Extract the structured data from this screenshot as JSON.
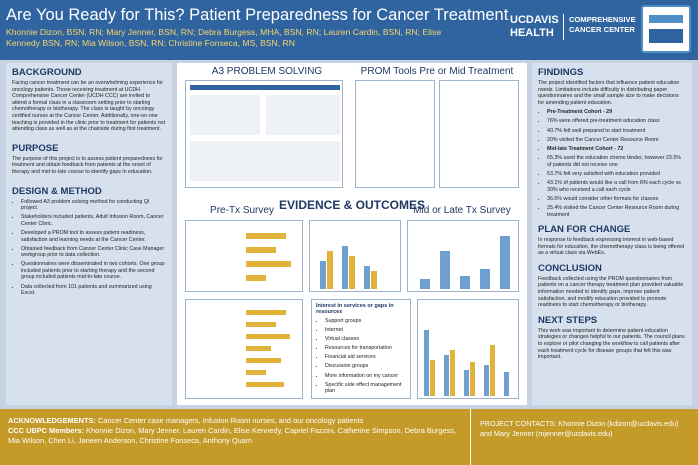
{
  "header": {
    "title": "Are You Ready for This? Patient Preparedness for Cancer Treatment",
    "authors": "Khonnie Dizon, BSN, RN; Mary Jenner, BSN, RN; Debra Burgess, MHA, BSN, RN; Lauren Cardin, BSN, RN; Elise Kennedy BSN, RN; Mia Wilson, BSN, RN; Christine Fonseca, MS, BSN, RN",
    "logo_org": "UCDAVIS",
    "logo_sub": "HEALTH",
    "logo_center": "COMPREHENSIVE CANCER CENTER"
  },
  "background": {
    "heading": "BACKGROUND",
    "text": "Facing cancer treatment can be an overwhelming experience for oncology patients. Those receiving treatment at UCDH Comprehensive Cancer Center (UCDH CCC) are invited to attend a formal class in a classroom setting prior to starting chemotherapy or biotherapy. The class is taught by oncology certified nurses at the Cancer Center. Additionally, one-on-one teaching is provided in the clinic prior to treatment for patients not attending class as well as at the chairside during first treatment."
  },
  "purpose": {
    "heading": "PURPOSE",
    "text": "The purpose of this project is to assess patient preparedness for treatment and obtain feedback from patients at the onset of therapy and mid-to-late course to identify gaps in education."
  },
  "design": {
    "heading": "DESIGN & METHOD",
    "items": [
      "Followed A3 problem solving method for conducting QI project.",
      "Stakeholders included patients, Adult Infusion Room, Cancer Center Clinic.",
      "Developed a PROM tool to assess patient readiness, satisfaction and learning needs at the Cancer Center.",
      "Obtained feedback from Cancer Center Clinic Case Manager workgroup prior to data collection.",
      "Questionnaires were disseminated in two cohorts. One group included patients prior to starting therapy and the second group included patients mid-to-late course.",
      "Data collected from 101 patients and summarized using Excel."
    ]
  },
  "center": {
    "a3": "A3 PROBLEM SOLVING",
    "prom": "PROM Tools Pre or Mid Treatment",
    "evidence": "EVIDENCE & OUTCOMES",
    "pre_tx": "Pre-Tx Survey",
    "mid_tx": "Mid or Late Tx Survey",
    "interest": {
      "heading": "Interest in services or gaps in resources",
      "items": [
        "Support groups",
        "Internet",
        "Virtual classes",
        "Resources for transportation",
        "Financial aid services",
        "Discussion groups",
        "More information on my cancer",
        "Specific side effect management plan"
      ]
    }
  },
  "findings": {
    "heading": "FINDINGS",
    "text": "The project identified factors that influence patient education needs. Limitations include difficulty in distributing paper questionnaires and the small sample size to make decisions for amending patient education.",
    "cohorts": [
      {
        "title": "Pre-Treatment Cohort - 29",
        "items": [
          "76% were offered pre-treatment education class",
          "40.7% felt well prepared to start treatment",
          "20% visited the Cancer Center Resource Room"
        ]
      },
      {
        "title": "Mid-late Treatment Cohort - 72",
        "items": [
          "65.3% used the education chemo binder, however 23.5% of patients did not receive one",
          "53.7% felt very satisfied with education provided",
          "43.1% of patients would like a call from RN each cycle vs 30% who received a call each cycle",
          "36.6% would consider other formats for classes",
          "25.4% visited the Cancer Center Resource Room during treatment"
        ]
      }
    ]
  },
  "plan": {
    "heading": "PLAN FOR CHANGE",
    "text": "In response to feedback expressing interest in web-based formats for education, the chemotherapy class is being offered as a virtual class via WebEx."
  },
  "conclusion": {
    "heading": "CONCLUSION",
    "text": "Feedback collected using the PROM questionnaires from patients on a cancer therapy treatment plan provided valuable information needed to identify gaps, improve patient satisfaction, and modify education provided to promote readiness to start chemotherapy or biotherapy."
  },
  "next_steps": {
    "heading": "NEXT STEPS",
    "text": "This work was important to determine patient education strategies or changes helpful to our patients. The council plans to explore or pilot changing the workflow to call patients after each treatment cycle for disease groups that felt this was important."
  },
  "footer": {
    "ack_label": "ACKNOWLEDGEMENTS:",
    "ack_text": "Cancer Center case managers, Infusion Room nurses, and our oncology patients",
    "members_label": "CCC UBPC Members:",
    "members_text": "Khonnie Dizon, Mary Jenner, Lauren Cardin, Elise Kennedy, Capriel Fazzini, Catherine Simpson, Debra Burgess, Mia Wilson, Chen Li, Janeen Anderson, Christine Fonseca, Anthony Quam",
    "contacts": "PROJECT CONTACTS: Khonnie Dizon (kdizon@ucdavis.edu) and Mary Jenner (mjenner@ucdavis.edu)"
  }
}
